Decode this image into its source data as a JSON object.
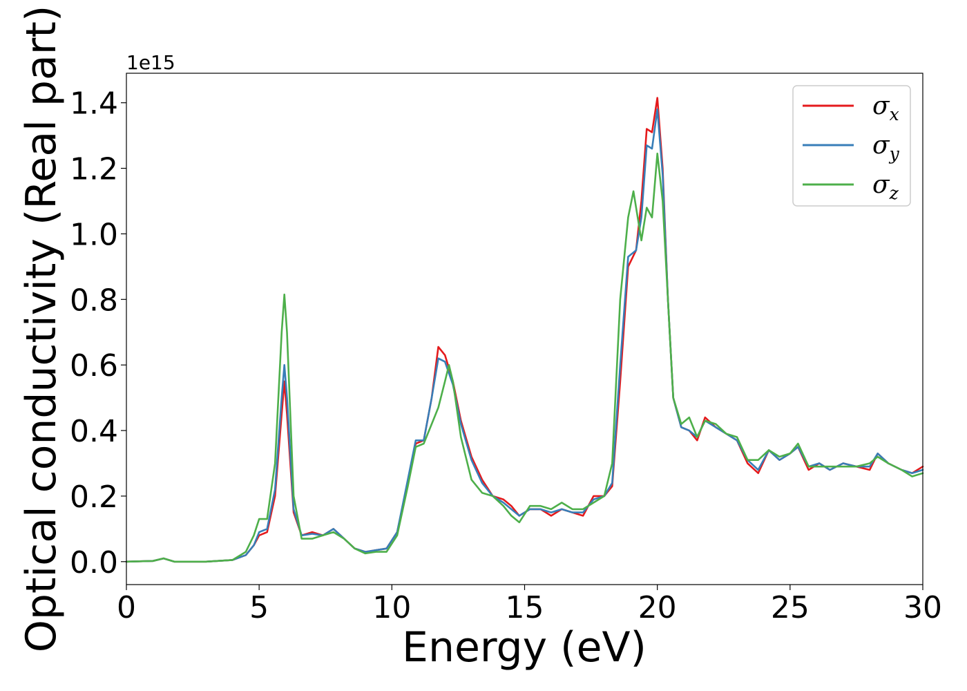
{
  "chart_data": {
    "type": "line",
    "title": "",
    "xlabel": "Energy (eV)",
    "ylabel": "Optical conductivity (Real part)",
    "y_offset_label": "1e15",
    "xlim": [
      0,
      30
    ],
    "ylim": [
      -0.07,
      1.49
    ],
    "x_ticks": [
      0,
      5,
      10,
      15,
      20,
      25,
      30
    ],
    "x_tick_labels": [
      "0",
      "5",
      "10",
      "15",
      "20",
      "25",
      "30"
    ],
    "y_ticks": [
      0.0,
      0.2,
      0.4,
      0.6,
      0.8,
      1.0,
      1.2,
      1.4
    ],
    "y_tick_labels": [
      "0.0",
      "0.2",
      "0.4",
      "0.6",
      "0.8",
      "1.0",
      "1.2",
      "1.4"
    ],
    "grid": false,
    "legend_position": "top-right",
    "series": [
      {
        "name": "σx",
        "legend_symbol": "σ",
        "legend_sub": "x",
        "color": "#e41a1c",
        "points": [
          [
            0,
            0.0
          ],
          [
            1.0,
            0.002
          ],
          [
            1.4,
            0.01
          ],
          [
            1.8,
            0.0
          ],
          [
            3.0,
            0.0
          ],
          [
            4.0,
            0.005
          ],
          [
            4.5,
            0.02
          ],
          [
            4.8,
            0.05
          ],
          [
            5.0,
            0.08
          ],
          [
            5.3,
            0.09
          ],
          [
            5.6,
            0.2
          ],
          [
            5.85,
            0.45
          ],
          [
            5.95,
            0.55
          ],
          [
            6.05,
            0.45
          ],
          [
            6.3,
            0.15
          ],
          [
            6.6,
            0.08
          ],
          [
            7.0,
            0.09
          ],
          [
            7.4,
            0.08
          ],
          [
            7.8,
            0.1
          ],
          [
            8.2,
            0.07
          ],
          [
            8.6,
            0.04
          ],
          [
            9.0,
            0.03
          ],
          [
            9.4,
            0.035
          ],
          [
            9.8,
            0.04
          ],
          [
            10.2,
            0.09
          ],
          [
            10.6,
            0.24
          ],
          [
            10.9,
            0.36
          ],
          [
            11.2,
            0.37
          ],
          [
            11.5,
            0.5
          ],
          [
            11.75,
            0.655
          ],
          [
            12.0,
            0.63
          ],
          [
            12.3,
            0.55
          ],
          [
            12.6,
            0.43
          ],
          [
            13.0,
            0.32
          ],
          [
            13.4,
            0.25
          ],
          [
            13.8,
            0.2
          ],
          [
            14.2,
            0.19
          ],
          [
            14.5,
            0.17
          ],
          [
            14.8,
            0.14
          ],
          [
            15.2,
            0.16
          ],
          [
            15.6,
            0.16
          ],
          [
            16.0,
            0.14
          ],
          [
            16.4,
            0.16
          ],
          [
            16.8,
            0.15
          ],
          [
            17.2,
            0.14
          ],
          [
            17.6,
            0.2
          ],
          [
            18.0,
            0.2
          ],
          [
            18.3,
            0.23
          ],
          [
            18.6,
            0.55
          ],
          [
            18.9,
            0.9
          ],
          [
            19.2,
            0.95
          ],
          [
            19.4,
            1.1
          ],
          [
            19.6,
            1.32
          ],
          [
            19.8,
            1.31
          ],
          [
            20.0,
            1.415
          ],
          [
            20.2,
            1.2
          ],
          [
            20.4,
            0.8
          ],
          [
            20.6,
            0.5
          ],
          [
            20.9,
            0.41
          ],
          [
            21.2,
            0.4
          ],
          [
            21.5,
            0.37
          ],
          [
            21.8,
            0.44
          ],
          [
            22.2,
            0.41
          ],
          [
            22.6,
            0.39
          ],
          [
            23.0,
            0.37
          ],
          [
            23.4,
            0.3
          ],
          [
            23.8,
            0.27
          ],
          [
            24.2,
            0.34
          ],
          [
            24.6,
            0.31
          ],
          [
            25.0,
            0.33
          ],
          [
            25.3,
            0.35
          ],
          [
            25.7,
            0.28
          ],
          [
            26.1,
            0.3
          ],
          [
            26.5,
            0.28
          ],
          [
            27.0,
            0.3
          ],
          [
            27.5,
            0.29
          ],
          [
            28.0,
            0.28
          ],
          [
            28.3,
            0.33
          ],
          [
            28.7,
            0.3
          ],
          [
            29.2,
            0.28
          ],
          [
            29.6,
            0.27
          ],
          [
            30.0,
            0.29
          ]
        ]
      },
      {
        "name": "σy",
        "legend_symbol": "σ",
        "legend_sub": "y",
        "color": "#377eb8",
        "points": [
          [
            0,
            0.0
          ],
          [
            1.0,
            0.002
          ],
          [
            1.4,
            0.01
          ],
          [
            1.8,
            0.0
          ],
          [
            3.0,
            0.0
          ],
          [
            4.0,
            0.005
          ],
          [
            4.5,
            0.02
          ],
          [
            4.8,
            0.05
          ],
          [
            5.0,
            0.09
          ],
          [
            5.3,
            0.1
          ],
          [
            5.6,
            0.22
          ],
          [
            5.85,
            0.5
          ],
          [
            5.95,
            0.6
          ],
          [
            6.05,
            0.5
          ],
          [
            6.3,
            0.16
          ],
          [
            6.6,
            0.08
          ],
          [
            7.0,
            0.085
          ],
          [
            7.4,
            0.08
          ],
          [
            7.8,
            0.1
          ],
          [
            8.2,
            0.07
          ],
          [
            8.6,
            0.04
          ],
          [
            9.0,
            0.03
          ],
          [
            9.4,
            0.035
          ],
          [
            9.8,
            0.04
          ],
          [
            10.2,
            0.09
          ],
          [
            10.6,
            0.25
          ],
          [
            10.9,
            0.37
          ],
          [
            11.2,
            0.37
          ],
          [
            11.5,
            0.5
          ],
          [
            11.75,
            0.62
          ],
          [
            12.0,
            0.61
          ],
          [
            12.3,
            0.54
          ],
          [
            12.6,
            0.42
          ],
          [
            13.0,
            0.31
          ],
          [
            13.4,
            0.24
          ],
          [
            13.8,
            0.2
          ],
          [
            14.2,
            0.18
          ],
          [
            14.5,
            0.16
          ],
          [
            14.8,
            0.14
          ],
          [
            15.2,
            0.16
          ],
          [
            15.6,
            0.16
          ],
          [
            16.0,
            0.15
          ],
          [
            16.4,
            0.16
          ],
          [
            16.8,
            0.15
          ],
          [
            17.2,
            0.15
          ],
          [
            17.6,
            0.19
          ],
          [
            18.0,
            0.2
          ],
          [
            18.3,
            0.24
          ],
          [
            18.6,
            0.6
          ],
          [
            18.9,
            0.93
          ],
          [
            19.2,
            0.95
          ],
          [
            19.4,
            1.05
          ],
          [
            19.6,
            1.27
          ],
          [
            19.8,
            1.26
          ],
          [
            20.0,
            1.38
          ],
          [
            20.2,
            1.18
          ],
          [
            20.4,
            0.8
          ],
          [
            20.6,
            0.5
          ],
          [
            20.9,
            0.41
          ],
          [
            21.2,
            0.4
          ],
          [
            21.5,
            0.38
          ],
          [
            21.8,
            0.43
          ],
          [
            22.2,
            0.41
          ],
          [
            22.6,
            0.39
          ],
          [
            23.0,
            0.37
          ],
          [
            23.4,
            0.31
          ],
          [
            23.8,
            0.28
          ],
          [
            24.2,
            0.34
          ],
          [
            24.6,
            0.31
          ],
          [
            25.0,
            0.33
          ],
          [
            25.3,
            0.35
          ],
          [
            25.7,
            0.29
          ],
          [
            26.1,
            0.3
          ],
          [
            26.5,
            0.28
          ],
          [
            27.0,
            0.3
          ],
          [
            27.5,
            0.29
          ],
          [
            28.0,
            0.29
          ],
          [
            28.3,
            0.33
          ],
          [
            28.7,
            0.3
          ],
          [
            29.2,
            0.28
          ],
          [
            29.6,
            0.27
          ],
          [
            30.0,
            0.28
          ]
        ]
      },
      {
        "name": "σz",
        "legend_symbol": "σ",
        "legend_sub": "z",
        "color": "#4daf4a",
        "points": [
          [
            0,
            0.0
          ],
          [
            1.0,
            0.002
          ],
          [
            1.4,
            0.01
          ],
          [
            1.8,
            0.0
          ],
          [
            3.0,
            0.0
          ],
          [
            4.0,
            0.005
          ],
          [
            4.5,
            0.03
          ],
          [
            4.8,
            0.08
          ],
          [
            5.0,
            0.13
          ],
          [
            5.3,
            0.13
          ],
          [
            5.6,
            0.3
          ],
          [
            5.85,
            0.7
          ],
          [
            5.95,
            0.815
          ],
          [
            6.05,
            0.7
          ],
          [
            6.3,
            0.2
          ],
          [
            6.6,
            0.07
          ],
          [
            7.0,
            0.07
          ],
          [
            7.4,
            0.08
          ],
          [
            7.8,
            0.09
          ],
          [
            8.2,
            0.07
          ],
          [
            8.6,
            0.04
          ],
          [
            9.0,
            0.025
          ],
          [
            9.4,
            0.03
          ],
          [
            9.8,
            0.03
          ],
          [
            10.2,
            0.08
          ],
          [
            10.6,
            0.23
          ],
          [
            10.9,
            0.35
          ],
          [
            11.2,
            0.36
          ],
          [
            11.5,
            0.42
          ],
          [
            11.75,
            0.47
          ],
          [
            12.0,
            0.55
          ],
          [
            12.15,
            0.6
          ],
          [
            12.3,
            0.55
          ],
          [
            12.6,
            0.38
          ],
          [
            13.0,
            0.25
          ],
          [
            13.4,
            0.21
          ],
          [
            13.8,
            0.2
          ],
          [
            14.2,
            0.17
          ],
          [
            14.5,
            0.14
          ],
          [
            14.8,
            0.12
          ],
          [
            15.2,
            0.17
          ],
          [
            15.6,
            0.17
          ],
          [
            16.0,
            0.16
          ],
          [
            16.4,
            0.18
          ],
          [
            16.8,
            0.16
          ],
          [
            17.2,
            0.16
          ],
          [
            17.6,
            0.18
          ],
          [
            18.0,
            0.2
          ],
          [
            18.3,
            0.3
          ],
          [
            18.6,
            0.8
          ],
          [
            18.9,
            1.05
          ],
          [
            19.1,
            1.13
          ],
          [
            19.4,
            0.98
          ],
          [
            19.6,
            1.08
          ],
          [
            19.8,
            1.05
          ],
          [
            20.0,
            1.245
          ],
          [
            20.2,
            1.1
          ],
          [
            20.4,
            0.8
          ],
          [
            20.6,
            0.5
          ],
          [
            20.9,
            0.42
          ],
          [
            21.2,
            0.44
          ],
          [
            21.5,
            0.38
          ],
          [
            21.8,
            0.43
          ],
          [
            22.2,
            0.42
          ],
          [
            22.6,
            0.39
          ],
          [
            23.0,
            0.38
          ],
          [
            23.4,
            0.31
          ],
          [
            23.8,
            0.31
          ],
          [
            24.2,
            0.34
          ],
          [
            24.6,
            0.32
          ],
          [
            25.0,
            0.33
          ],
          [
            25.3,
            0.36
          ],
          [
            25.7,
            0.29
          ],
          [
            26.1,
            0.29
          ],
          [
            26.5,
            0.29
          ],
          [
            27.0,
            0.29
          ],
          [
            27.5,
            0.29
          ],
          [
            28.0,
            0.3
          ],
          [
            28.3,
            0.32
          ],
          [
            28.7,
            0.3
          ],
          [
            29.2,
            0.28
          ],
          [
            29.6,
            0.26
          ],
          [
            30.0,
            0.27
          ]
        ]
      }
    ]
  }
}
